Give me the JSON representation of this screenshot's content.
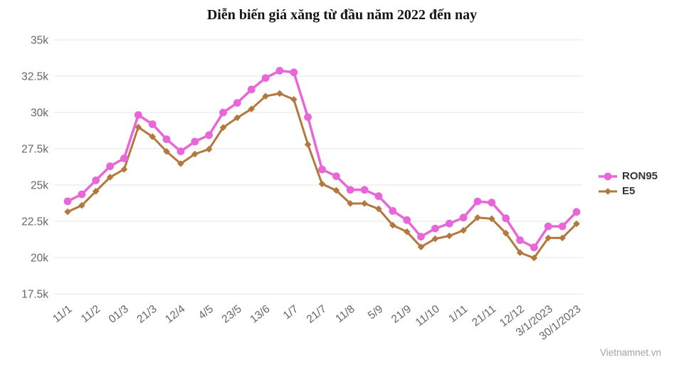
{
  "title": "Diễn biến giá xăng từ đầu năm 2022 đến nay",
  "watermark": "Vietnamnet.vn",
  "chart_data": {
    "type": "line",
    "title": "Diễn biến giá xăng từ đầu năm 2022 đến nay",
    "x_labels": [
      "11/1",
      "11/2",
      "01/3",
      "21/3",
      "12/4",
      "4/5",
      "23/5",
      "13/6",
      "1/7",
      "21/7",
      "11/8",
      "5/9",
      "21/9",
      "11/10",
      "1/11",
      "21/11",
      "12/12",
      "3/1/2023",
      "30/1/2023"
    ],
    "label_step": 2,
    "n_points": 37,
    "ylim": [
      17500,
      35000
    ],
    "y_ticks": [
      {
        "label": "35k",
        "value": 35000
      },
      {
        "label": "32.5k",
        "value": 32500
      },
      {
        "label": "30k",
        "value": 30000
      },
      {
        "label": "27.5k",
        "value": 27500
      },
      {
        "label": "25k",
        "value": 25000
      },
      {
        "label": "22.5k",
        "value": 22500
      },
      {
        "label": "20k",
        "value": 20000
      },
      {
        "label": "17.5k",
        "value": 17500
      }
    ],
    "grid": true,
    "legend_position": "right",
    "series": [
      {
        "name": "RON95",
        "color": "#e867d8",
        "marker": "circle",
        "values": [
          23876,
          24360,
          25322,
          26287,
          26834,
          29824,
          29192,
          28153,
          27317,
          27992,
          28434,
          29988,
          30657,
          31578,
          32375,
          32873,
          32763,
          29675,
          26070,
          25608,
          24669,
          24669,
          24230,
          23215,
          22584,
          21443,
          22007,
          22344,
          22756,
          23867,
          23787,
          22704,
          21200,
          20700,
          22154,
          22154,
          23147
        ]
      },
      {
        "name": "E5",
        "color": "#b2783e",
        "marker": "diamond",
        "values": [
          23159,
          23595,
          24571,
          25532,
          26077,
          28985,
          28330,
          27309,
          26471,
          27134,
          27468,
          28959,
          29633,
          30235,
          31117,
          31302,
          30891,
          27788,
          25073,
          24629,
          23725,
          23725,
          23359,
          22231,
          21781,
          20732,
          21292,
          21496,
          21873,
          22756,
          22677,
          21679,
          20340,
          19975,
          21352,
          21352,
          22329
        ]
      }
    ]
  }
}
